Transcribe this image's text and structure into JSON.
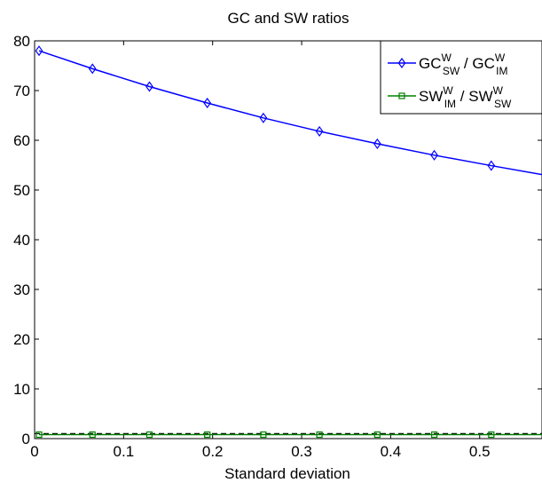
{
  "chart_data": {
    "type": "line",
    "title": "GC and SW ratios",
    "xlabel": "Standard deviation",
    "ylabel": "",
    "xlim": [
      0,
      0.57
    ],
    "ylim": [
      0,
      80
    ],
    "xticks": [
      "0",
      "0.1",
      "0.2",
      "0.3",
      "0.4",
      "0.5"
    ],
    "xtick_values": [
      0,
      0.1,
      0.2,
      0.3,
      0.4,
      0.5
    ],
    "yticks": [
      "0",
      "10",
      "20",
      "30",
      "40",
      "50",
      "60",
      "70",
      "80"
    ],
    "ytick_values": [
      0,
      10,
      20,
      30,
      40,
      50,
      60,
      70,
      80
    ],
    "grid": false,
    "legend_position": "top-right",
    "series": [
      {
        "name": "GC_SW^W / GC_IM^W",
        "legend": {
          "base1": "GC",
          "sup1": "W",
          "sub1": "SW",
          "sep": " / ",
          "base2": "GC",
          "sup2": "W",
          "sub2": "IM"
        },
        "color": "#0000ff",
        "marker": "diamond",
        "x": [
          0.005,
          0.065,
          0.129,
          0.194,
          0.257,
          0.32,
          0.385,
          0.449,
          0.513,
          0.57
        ],
        "y": [
          78.0,
          74.4,
          70.8,
          67.5,
          64.5,
          61.8,
          59.3,
          57.0,
          54.9,
          53.1
        ],
        "marker_count": 9
      },
      {
        "name": "SW_IM^W / SW_SW^W",
        "legend": {
          "base1": "SW",
          "sup1": "W",
          "sub1": "IM",
          "sep": " / ",
          "base2": "SW",
          "sup2": "W",
          "sub2": "SW"
        },
        "color": "#008000",
        "marker": "square",
        "x": [
          0.005,
          0.065,
          0.129,
          0.194,
          0.257,
          0.32,
          0.385,
          0.449,
          0.513,
          0.57
        ],
        "y": [
          0.8,
          0.8,
          0.8,
          0.8,
          0.8,
          0.8,
          0.8,
          0.8,
          0.8,
          0.8
        ],
        "marker_count": 9
      }
    ],
    "reference_line": {
      "y": 1,
      "style": "dashed",
      "color": "#000000"
    }
  }
}
